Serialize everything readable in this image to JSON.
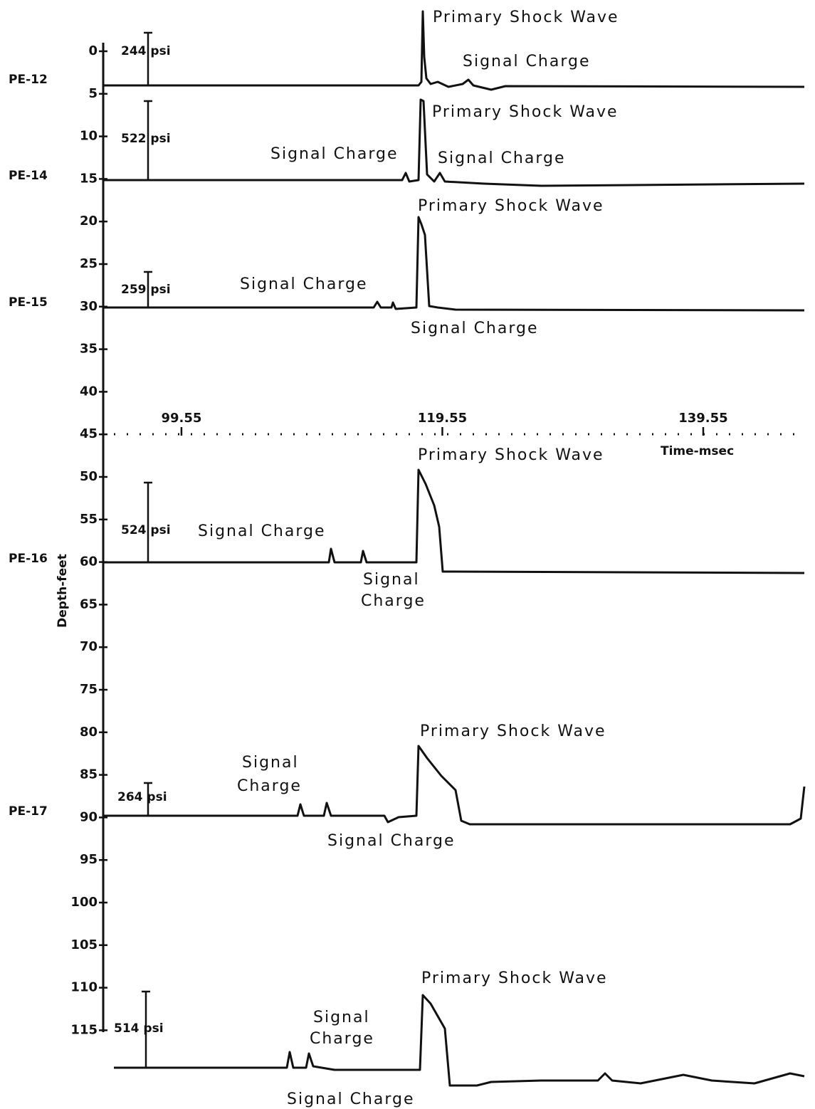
{
  "chart_data": {
    "type": "pressure-traces",
    "y_label": "Depth-feet",
    "ylim": [
      0,
      115
    ],
    "yticks": [
      0,
      5,
      10,
      15,
      20,
      25,
      30,
      35,
      40,
      45,
      50,
      55,
      60,
      65,
      70,
      75,
      80,
      85,
      90,
      95,
      100,
      105,
      110,
      115
    ],
    "x_label": "Time-msec",
    "xlim": [
      94.37,
      147.3
    ],
    "xticks": [
      99.55,
      119.55,
      139.55
    ],
    "gauges": [
      {
        "name": "PE-12",
        "peak_pressure": "244 psi",
        "annotations": [
          "Primary Shock Wave",
          "Signal Charge"
        ]
      },
      {
        "name": "PE-14",
        "peak_pressure": "522 psi",
        "annotations": [
          "Primary Shock Wave",
          "Signal Charge",
          "Signal Charge"
        ]
      },
      {
        "name": "PE-15",
        "peak_pressure": "259 psi",
        "annotations": [
          "Primary Shock Wave",
          "Signal Charge",
          "Signal Charge"
        ]
      },
      {
        "name": "PE-16",
        "peak_pressure": "524 psi",
        "annotations": [
          "Primary Shock Wave",
          "Signal Charge",
          "Signal",
          "Charge"
        ]
      },
      {
        "name": "PE-17",
        "peak_pressure": "264 psi",
        "annotations": [
          "Primary Shock Wave",
          "Signal",
          "Charge",
          "Signal Charge"
        ]
      },
      {
        "peak_pressure": "514 psi",
        "annotations": [
          "Primary Shock Wave",
          "Signal",
          "Charge",
          "Signal Charge"
        ]
      }
    ]
  }
}
